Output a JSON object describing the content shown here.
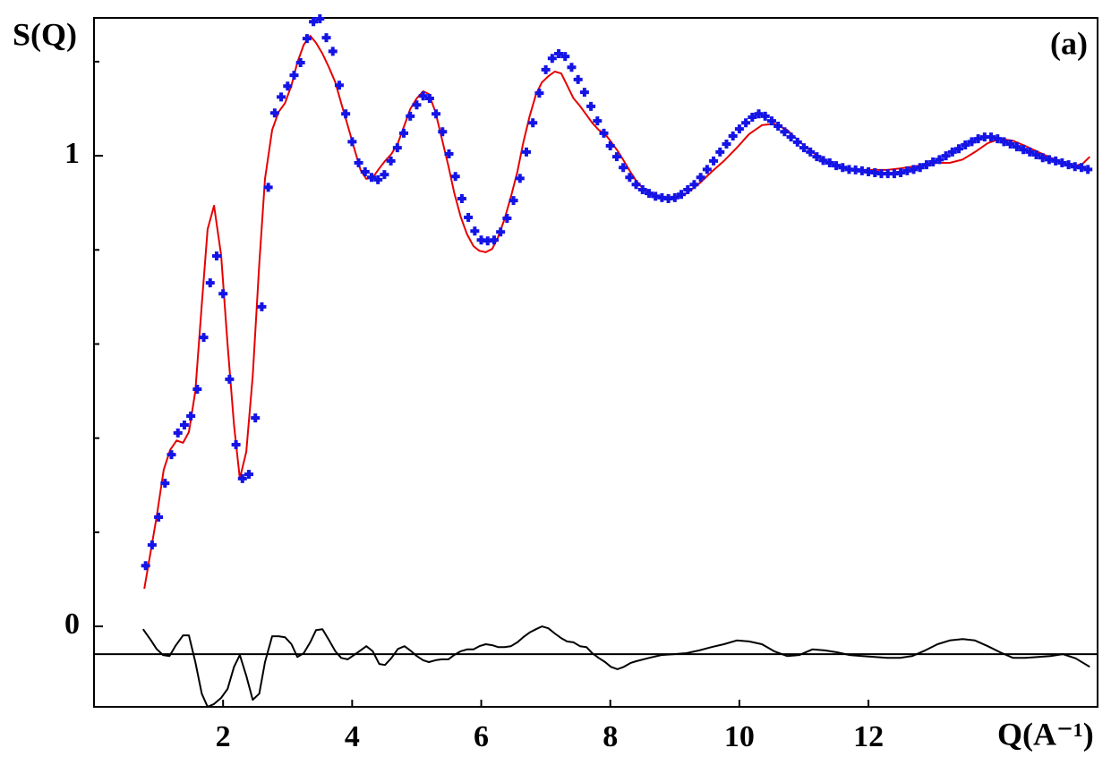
{
  "chart_data": {
    "type": "scatter",
    "y_label": "S(Q)",
    "annotation": "(a)",
    "x_label": "Q(A⁻¹)",
    "xlim": [
      0,
      15.55
    ],
    "ylim": [
      -0.171,
      1.293
    ],
    "xticks": [
      2,
      4,
      6,
      8,
      10,
      12
    ],
    "yticks": [
      0,
      1
    ],
    "yminorticks": [
      0.2,
      0.4,
      0.6,
      0.8,
      1.2
    ],
    "hline": -0.059,
    "series": [
      {
        "mode": "markers",
        "color": "#1414e6",
        "x": [
          0.8,
          0.9,
          1.0,
          1.1,
          1.2,
          1.3,
          1.4,
          1.5,
          1.6,
          1.7,
          1.8,
          1.9,
          2.0,
          2.1,
          2.2,
          2.3,
          2.4,
          2.5,
          2.6,
          2.7,
          2.8,
          2.9,
          3.0,
          3.1,
          3.2,
          3.3,
          3.4,
          3.5,
          3.6,
          3.7,
          3.8,
          3.9,
          4.0,
          4.1,
          4.2,
          4.3,
          4.4,
          4.5,
          4.6,
          4.7,
          4.8,
          4.9,
          5.0,
          5.1,
          5.2,
          5.3,
          5.4,
          5.5,
          5.6,
          5.7,
          5.8,
          5.9,
          6.0,
          6.1,
          6.2,
          6.3,
          6.4,
          6.5,
          6.6,
          6.7,
          6.8,
          6.9,
          7.0,
          7.1,
          7.2,
          7.3,
          7.4,
          7.5,
          7.6,
          7.7,
          7.8,
          7.9,
          8.0,
          8.1,
          8.2,
          8.3,
          8.4,
          8.5,
          8.6,
          8.7,
          8.8,
          8.9,
          9.0,
          9.1,
          9.2,
          9.3,
          9.4,
          9.5,
          9.6,
          9.7,
          9.8,
          9.9,
          10.0,
          10.1,
          10.2,
          10.3,
          10.4,
          10.5,
          10.6,
          10.7,
          10.8,
          10.9,
          11.0,
          11.1,
          11.2,
          11.3,
          11.4,
          11.5,
          11.6,
          11.7,
          11.8,
          11.9,
          12.0,
          12.1,
          12.2,
          12.3,
          12.4,
          12.5,
          12.6,
          12.7,
          12.8,
          12.9,
          13.0,
          13.1,
          13.2,
          13.3,
          13.4,
          13.5,
          13.6,
          13.7,
          13.8,
          13.9,
          14.0,
          14.1,
          14.2,
          14.3,
          14.4,
          14.5,
          14.6,
          14.7,
          14.8,
          14.9,
          15.0,
          15.1,
          15.2,
          15.3,
          15.4
        ],
        "values": [
          0.129,
          0.173,
          0.232,
          0.304,
          0.365,
          0.411,
          0.428,
          0.447,
          0.504,
          0.614,
          0.73,
          0.787,
          0.707,
          0.525,
          0.386,
          0.314,
          0.323,
          0.443,
          0.679,
          0.933,
          1.091,
          1.125,
          1.148,
          1.171,
          1.198,
          1.249,
          1.285,
          1.291,
          1.251,
          1.222,
          1.15,
          1.089,
          1.03,
          0.985,
          0.966,
          0.954,
          0.949,
          0.96,
          0.989,
          1.017,
          1.048,
          1.084,
          1.108,
          1.127,
          1.122,
          1.089,
          1.051,
          1.004,
          0.956,
          0.909,
          0.869,
          0.84,
          0.821,
          0.819,
          0.821,
          0.838,
          0.867,
          0.905,
          0.952,
          1.008,
          1.07,
          1.133,
          1.183,
          1.207,
          1.217,
          1.211,
          1.188,
          1.162,
          1.135,
          1.105,
          1.074,
          1.048,
          1.021,
          0.998,
          0.975,
          0.954,
          0.939,
          0.928,
          0.92,
          0.914,
          0.911,
          0.909,
          0.911,
          0.918,
          0.928,
          0.939,
          0.954,
          0.971,
          0.989,
          1.008,
          1.025,
          1.042,
          1.057,
          1.07,
          1.082,
          1.089,
          1.084,
          1.074,
          1.063,
          1.051,
          1.04,
          1.029,
          1.017,
          1.008,
          0.998,
          0.99,
          0.985,
          0.979,
          0.975,
          0.971,
          0.97,
          0.968,
          0.966,
          0.964,
          0.962,
          0.962,
          0.962,
          0.964,
          0.968,
          0.971,
          0.975,
          0.981,
          0.987,
          0.992,
          1.0,
          1.008,
          1.015,
          1.023,
          1.03,
          1.036,
          1.04,
          1.04,
          1.036,
          1.03,
          1.025,
          1.019,
          1.013,
          1.008,
          1.002,
          0.996,
          0.992,
          0.989,
          0.985,
          0.981,
          0.977,
          0.975,
          0.971
        ]
      },
      {
        "mode": "line",
        "color": "#e60000",
        "x": [
          0.78,
          0.87,
          0.97,
          1.08,
          1.18,
          1.28,
          1.38,
          1.47,
          1.57,
          1.67,
          1.76,
          1.86,
          1.97,
          2.07,
          2.17,
          2.26,
          2.36,
          2.46,
          2.56,
          2.65,
          2.76,
          2.86,
          2.96,
          3.06,
          3.15,
          3.25,
          3.35,
          3.44,
          3.54,
          3.64,
          3.74,
          3.83,
          3.93,
          4.03,
          4.13,
          4.22,
          4.32,
          4.42,
          4.51,
          4.61,
          4.71,
          4.81,
          4.9,
          5.0,
          5.1,
          5.19,
          5.29,
          5.39,
          5.49,
          5.58,
          5.68,
          5.78,
          5.88,
          5.97,
          6.07,
          6.17,
          6.26,
          6.36,
          6.46,
          6.56,
          6.65,
          6.75,
          6.85,
          6.94,
          7.04,
          7.14,
          7.24,
          7.33,
          7.43,
          7.53,
          7.63,
          7.72,
          7.82,
          7.92,
          8.01,
          8.11,
          8.21,
          8.31,
          8.4,
          8.5,
          8.6,
          8.69,
          8.79,
          8.99,
          9.18,
          9.38,
          9.57,
          9.76,
          9.96,
          10.15,
          10.35,
          10.54,
          10.74,
          10.93,
          11.13,
          11.32,
          11.51,
          11.71,
          11.9,
          12.1,
          12.29,
          12.49,
          12.68,
          12.88,
          13.07,
          13.26,
          13.46,
          13.65,
          13.85,
          14.04,
          14.24,
          14.43,
          14.63,
          14.82,
          15.01,
          15.21,
          15.32,
          15.43
        ],
        "values": [
          0.08,
          0.152,
          0.232,
          0.333,
          0.375,
          0.395,
          0.39,
          0.413,
          0.5,
          0.684,
          0.844,
          0.894,
          0.789,
          0.599,
          0.428,
          0.314,
          0.371,
          0.532,
          0.77,
          0.951,
          1.055,
          1.093,
          1.112,
          1.15,
          1.198,
          1.236,
          1.255,
          1.24,
          1.217,
          1.188,
          1.156,
          1.112,
          1.065,
          1.017,
          0.97,
          0.951,
          0.954,
          0.973,
          0.989,
          1.004,
          1.027,
          1.065,
          1.099,
          1.122,
          1.137,
          1.131,
          1.093,
          1.036,
          0.979,
          0.922,
          0.871,
          0.833,
          0.808,
          0.798,
          0.795,
          0.802,
          0.827,
          0.865,
          0.913,
          0.966,
          1.027,
          1.084,
          1.131,
          1.156,
          1.169,
          1.179,
          1.175,
          1.15,
          1.122,
          1.106,
          1.087,
          1.07,
          1.055,
          1.046,
          1.03,
          1.011,
          0.989,
          0.966,
          0.947,
          0.932,
          0.922,
          0.916,
          0.913,
          0.909,
          0.92,
          0.941,
          0.966,
          0.989,
          1.017,
          1.046,
          1.065,
          1.068,
          1.055,
          1.03,
          1.008,
          0.989,
          0.979,
          0.973,
          0.97,
          0.97,
          0.97,
          0.973,
          0.977,
          0.981,
          0.985,
          0.985,
          0.992,
          1.008,
          1.027,
          1.036,
          1.032,
          1.021,
          1.008,
          0.996,
          0.985,
          0.979,
          0.983,
          0.998
        ]
      },
      {
        "mode": "line",
        "color": "#000000",
        "x": [
          0.76,
          0.88,
          0.97,
          1.07,
          1.17,
          1.26,
          1.38,
          1.47,
          1.57,
          1.67,
          1.76,
          1.86,
          1.97,
          2.07,
          2.17,
          2.26,
          2.36,
          2.46,
          2.56,
          2.65,
          2.76,
          2.86,
          2.96,
          3.06,
          3.15,
          3.25,
          3.35,
          3.44,
          3.54,
          3.64,
          3.74,
          3.83,
          3.93,
          4.03,
          4.13,
          4.22,
          4.32,
          4.42,
          4.51,
          4.61,
          4.71,
          4.81,
          4.9,
          5.0,
          5.1,
          5.19,
          5.29,
          5.39,
          5.49,
          5.58,
          5.68,
          5.78,
          5.88,
          5.97,
          6.07,
          6.17,
          6.26,
          6.36,
          6.46,
          6.56,
          6.65,
          6.75,
          6.85,
          6.94,
          7.04,
          7.14,
          7.24,
          7.33,
          7.43,
          7.53,
          7.63,
          7.72,
          7.82,
          7.92,
          8.01,
          8.11,
          8.21,
          8.31,
          8.4,
          8.6,
          8.79,
          8.99,
          9.18,
          9.38,
          9.57,
          9.76,
          9.96,
          10.15,
          10.35,
          10.54,
          10.74,
          10.93,
          11.13,
          11.32,
          11.51,
          11.71,
          11.9,
          12.1,
          12.29,
          12.49,
          12.68,
          12.88,
          13.07,
          13.26,
          13.46,
          13.65,
          13.85,
          14.04,
          14.24,
          14.43,
          14.63,
          14.82,
          15.01,
          15.21,
          15.43
        ],
        "values": [
          -0.006,
          -0.029,
          -0.048,
          -0.061,
          -0.063,
          -0.042,
          -0.019,
          -0.019,
          -0.076,
          -0.143,
          -0.171,
          -0.165,
          -0.152,
          -0.133,
          -0.086,
          -0.061,
          -0.105,
          -0.156,
          -0.143,
          -0.076,
          -0.021,
          -0.021,
          -0.023,
          -0.038,
          -0.065,
          -0.057,
          -0.034,
          -0.008,
          -0.006,
          -0.029,
          -0.053,
          -0.067,
          -0.07,
          -0.061,
          -0.051,
          -0.042,
          -0.053,
          -0.08,
          -0.082,
          -0.067,
          -0.048,
          -0.042,
          -0.051,
          -0.063,
          -0.072,
          -0.076,
          -0.072,
          -0.07,
          -0.07,
          -0.061,
          -0.053,
          -0.049,
          -0.049,
          -0.042,
          -0.038,
          -0.04,
          -0.044,
          -0.044,
          -0.042,
          -0.034,
          -0.023,
          -0.013,
          -0.006,
          0,
          -0.004,
          -0.015,
          -0.025,
          -0.032,
          -0.034,
          -0.042,
          -0.044,
          -0.057,
          -0.067,
          -0.076,
          -0.086,
          -0.091,
          -0.086,
          -0.078,
          -0.074,
          -0.067,
          -0.061,
          -0.059,
          -0.057,
          -0.051,
          -0.044,
          -0.038,
          -0.03,
          -0.032,
          -0.038,
          -0.053,
          -0.063,
          -0.061,
          -0.049,
          -0.051,
          -0.055,
          -0.061,
          -0.063,
          -0.065,
          -0.067,
          -0.067,
          -0.063,
          -0.051,
          -0.038,
          -0.03,
          -0.027,
          -0.03,
          -0.042,
          -0.055,
          -0.067,
          -0.067,
          -0.065,
          -0.063,
          -0.059,
          -0.068,
          -0.086
        ]
      }
    ]
  }
}
